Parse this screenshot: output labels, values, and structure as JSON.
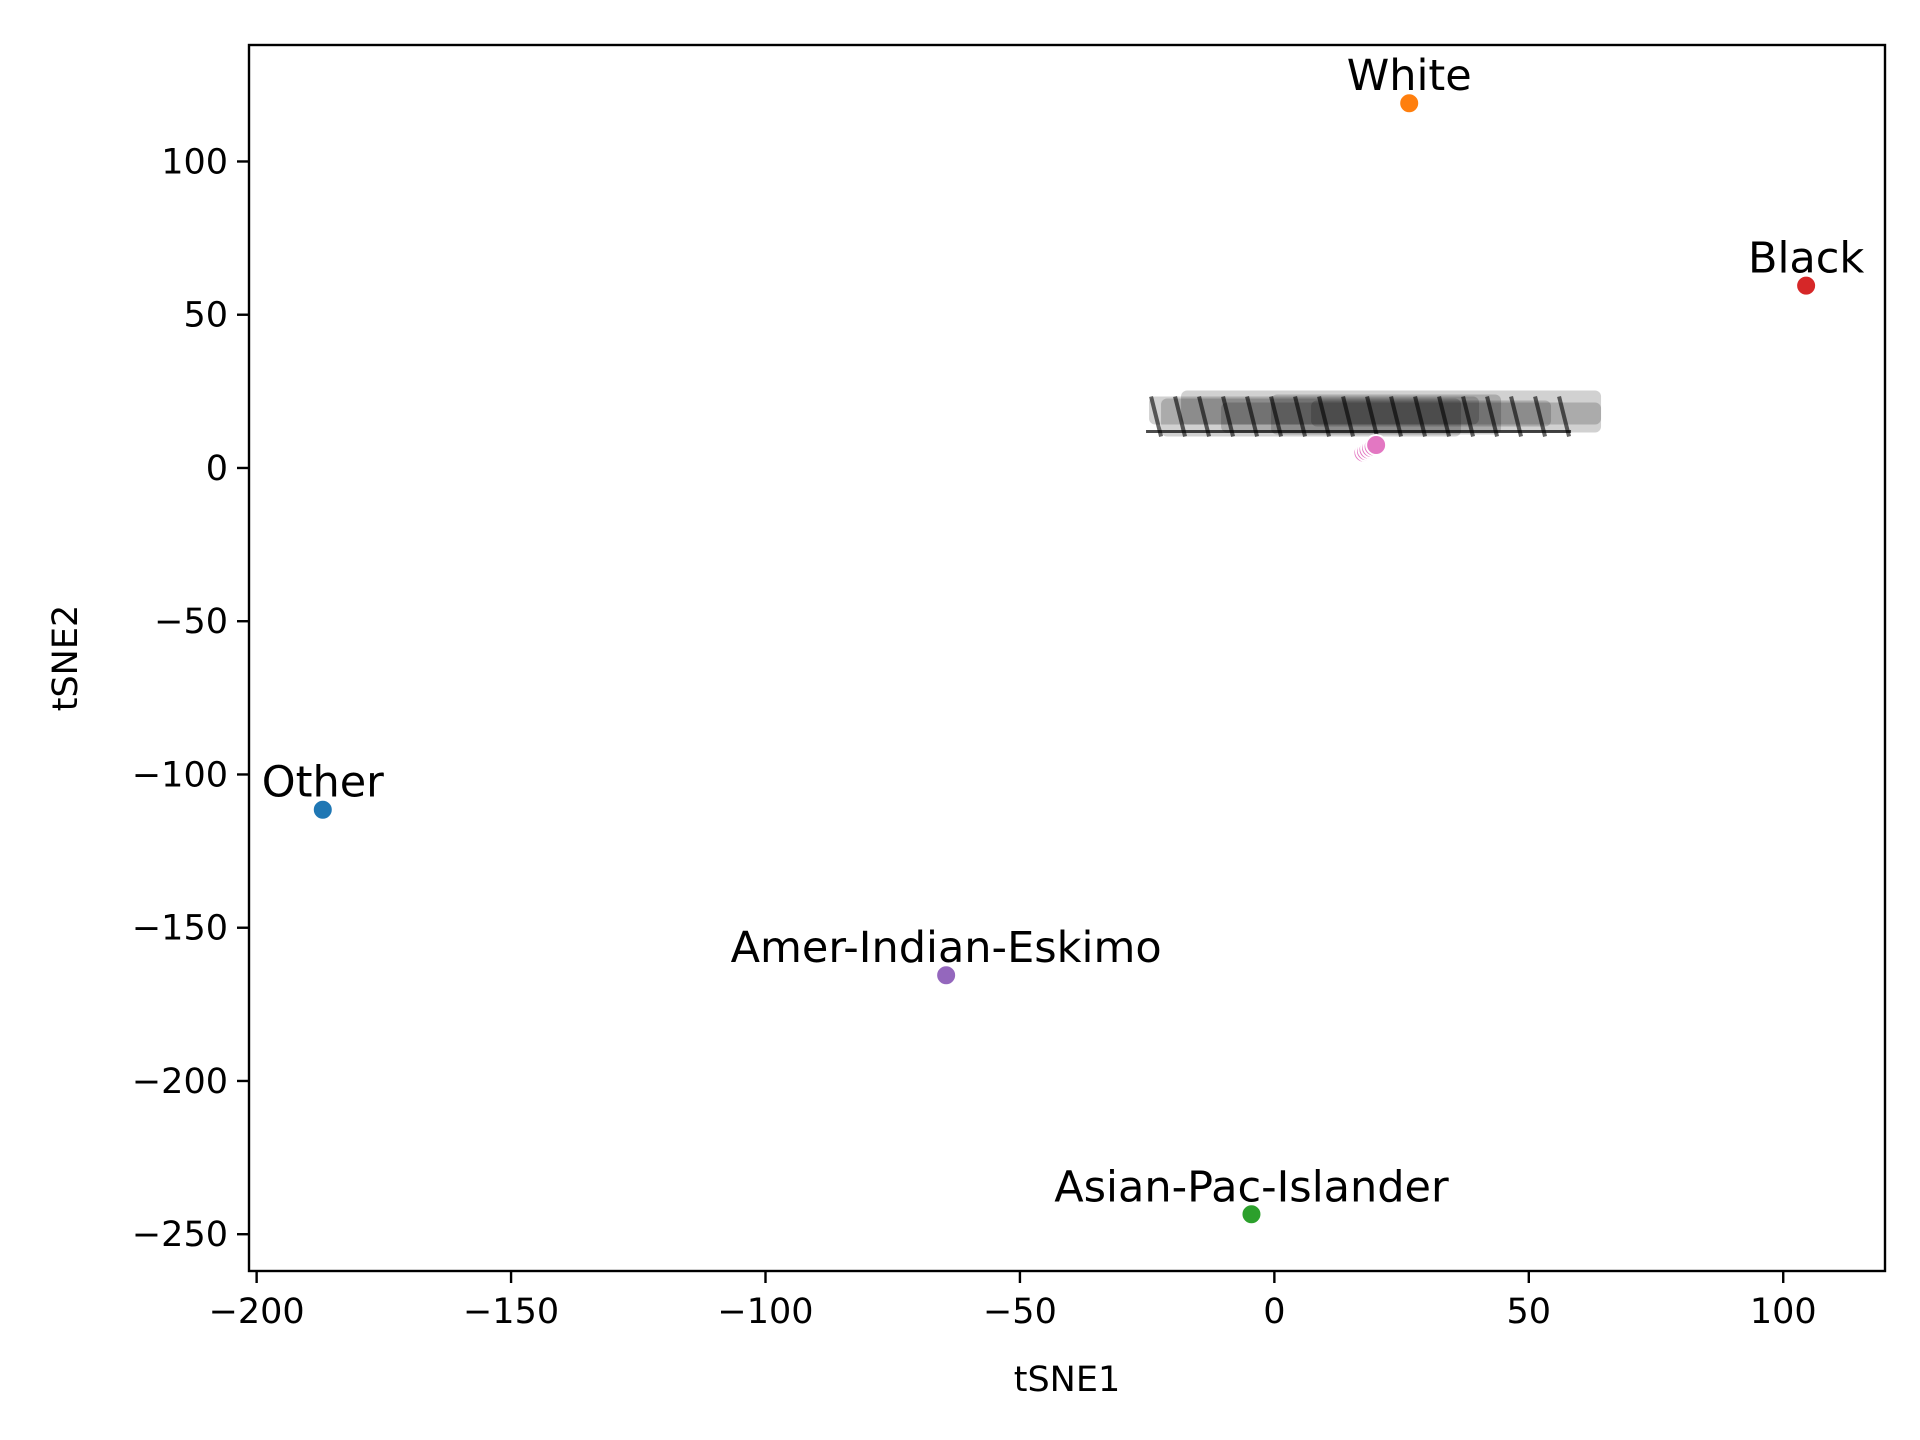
{
  "chart_data": {
    "type": "scatter",
    "xlabel": "tSNE1",
    "ylabel": "tSNE2",
    "xlim": [
      -201.5,
      120
    ],
    "ylim": [
      -262,
      138
    ],
    "xticks": [
      -200,
      -150,
      -100,
      -50,
      0,
      50,
      100
    ],
    "yticks": [
      -250,
      -200,
      -150,
      -100,
      -50,
      0,
      50,
      100
    ],
    "xtick_labels": [
      "−200",
      "−150",
      "−100",
      "−50",
      "0",
      "50",
      "100"
    ],
    "ytick_labels": [
      "−250",
      "−200",
      "−150",
      "−100",
      "−50",
      "0",
      "50",
      "100"
    ],
    "grid": false,
    "points": [
      {
        "label": "Other",
        "x": -187,
        "y": -111.5,
        "color": "#1f77b4"
      },
      {
        "label": "White",
        "x": 26.5,
        "y": 119,
        "color": "#ff7f0e"
      },
      {
        "label": "Asian-Pac-Islander",
        "x": -4.5,
        "y": -243.5,
        "color": "#2ca02c"
      },
      {
        "label": "Black",
        "x": 104.5,
        "y": 59.5,
        "color": "#d62728"
      },
      {
        "label": "Amer-Indian-Eskimo",
        "x": -64.5,
        "y": -165.5,
        "color": "#9467bd"
      },
      {
        "label": "",
        "x": 17.5,
        "y": 5,
        "color": "#e377c2"
      },
      {
        "label": "",
        "x": 18,
        "y": 5.5,
        "color": "#e377c2"
      },
      {
        "label": "",
        "x": 18.5,
        "y": 6,
        "color": "#e377c2"
      },
      {
        "label": "",
        "x": 19,
        "y": 6.5,
        "color": "#e377c2"
      },
      {
        "label": "",
        "x": 19.5,
        "y": 7,
        "color": "#e377c2"
      },
      {
        "label": "",
        "x": 20,
        "y": 7.5,
        "color": "#e377c2"
      }
    ]
  }
}
